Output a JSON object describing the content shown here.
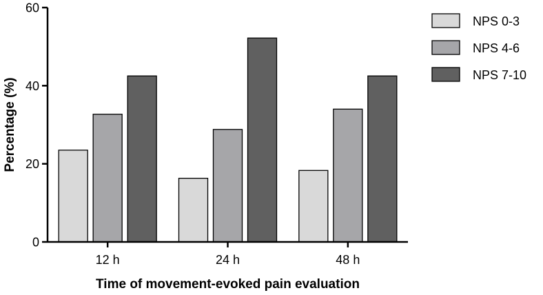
{
  "chart_data": {
    "type": "bar",
    "categories": [
      "12 h",
      "24 h",
      "48 h"
    ],
    "series": [
      {
        "name": "NPS 0-3",
        "values": [
          23.5,
          16.3,
          18.3
        ],
        "color": "#d9d9d9"
      },
      {
        "name": "NPS 4-6",
        "values": [
          32.7,
          28.8,
          34.0
        ],
        "color": "#a6a6a9"
      },
      {
        "name": "NPS 7-10",
        "values": [
          42.5,
          52.2,
          42.5
        ],
        "color": "#606060"
      }
    ],
    "xlabel": "Time of movement-evoked pain evaluation",
    "ylabel": "Percentage (%)",
    "ylim": [
      0,
      60
    ],
    "yticks": [
      0,
      20,
      40,
      60
    ],
    "grid": false,
    "legend": "top-right"
  }
}
